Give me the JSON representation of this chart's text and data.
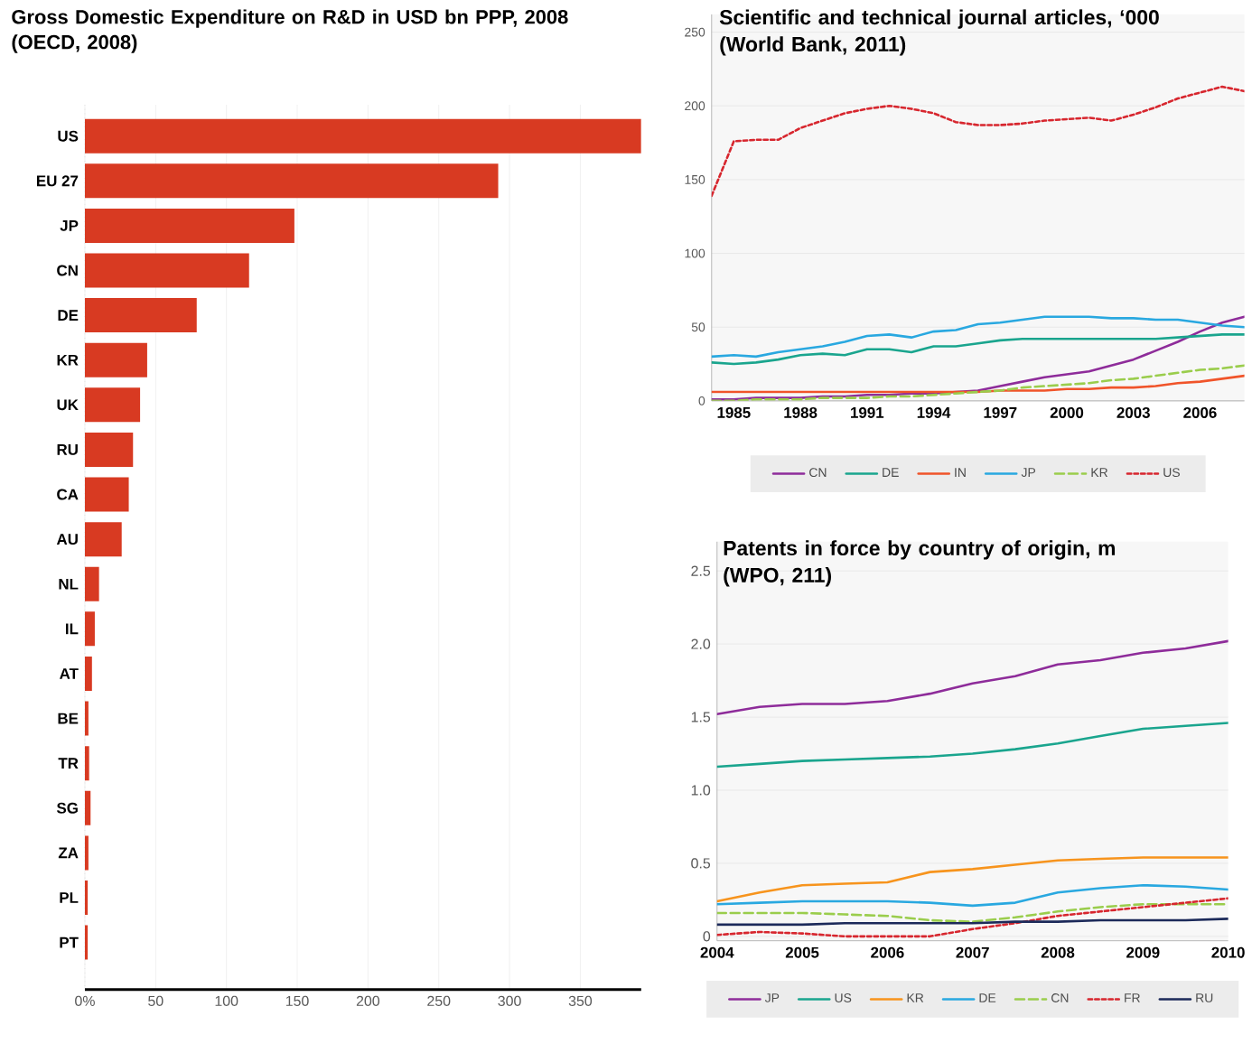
{
  "chart_data": [
    {
      "type": "bar",
      "orientation": "horizontal",
      "title": "Gross Domestic Expenditure on R&D in USD bn PPP, 2008",
      "subtitle": "(OECD, 2008)",
      "categories": [
        "US",
        "EU 27",
        "JP",
        "CN",
        "DE",
        "KR",
        "UK",
        "RU",
        "CA",
        "AU",
        "NL",
        "IL",
        "AT",
        "BE",
        "TR",
        "SG",
        "ZA",
        "PL",
        "PT"
      ],
      "values": [
        393,
        292,
        148,
        116,
        79,
        44,
        39,
        34,
        31,
        26,
        10,
        7,
        5,
        2.5,
        3,
        4,
        2.5,
        2,
        2
      ],
      "color": "#d83a22",
      "xlim": [
        0,
        393
      ],
      "xticks": [
        {
          "value": 0,
          "label": "0%"
        },
        50,
        100,
        150,
        200,
        250,
        300,
        350
      ],
      "grid": "x"
    },
    {
      "type": "line",
      "title": "Scientific and technical journal articles, ‘000",
      "subtitle": "(World Bank, 2011)",
      "x": [
        1984,
        1985,
        1986,
        1987,
        1988,
        1989,
        1990,
        1991,
        1992,
        1993,
        1994,
        1995,
        1996,
        1997,
        1998,
        1999,
        2000,
        2001,
        2002,
        2003,
        2004,
        2005,
        2006,
        2007,
        2008
      ],
      "series": [
        {
          "name": "CN",
          "color": "#8e2c9a",
          "values": [
            1,
            1,
            2,
            2,
            2,
            3,
            3,
            4,
            4,
            5,
            5,
            6,
            7,
            10,
            13,
            16,
            18,
            20,
            24,
            28,
            34,
            40,
            47,
            53,
            57
          ]
        },
        {
          "name": "DE",
          "color": "#1aa58e",
          "values": [
            26,
            25,
            26,
            28,
            31,
            32,
            31,
            35,
            35,
            33,
            37,
            37,
            39,
            41,
            42,
            42,
            42,
            42,
            42,
            42,
            42,
            43,
            44,
            45,
            45
          ]
        },
        {
          "name": "IN",
          "color": "#f0542a",
          "values": [
            6,
            6,
            6,
            6,
            6,
            6,
            6,
            6,
            6,
            6,
            6,
            6,
            6,
            7,
            7,
            7,
            8,
            8,
            9,
            9,
            10,
            12,
            13,
            15,
            17
          ]
        },
        {
          "name": "JP",
          "color": "#29a8e0",
          "values": [
            30,
            31,
            30,
            33,
            35,
            37,
            40,
            44,
            45,
            43,
            47,
            48,
            52,
            53,
            55,
            57,
            57,
            57,
            56,
            56,
            55,
            55,
            53,
            51,
            50
          ]
        },
        {
          "name": "KR",
          "color": "#9acd4c",
          "line_style": "dashed",
          "values": [
            0,
            0,
            1,
            1,
            1,
            2,
            2,
            2,
            3,
            3,
            4,
            5,
            6,
            7,
            9,
            10,
            11,
            12,
            14,
            15,
            17,
            19,
            21,
            22,
            24
          ]
        },
        {
          "name": "US",
          "color": "#d7262e",
          "line_style": "dotted",
          "values": [
            139,
            176,
            177,
            177,
            185,
            190,
            195,
            198,
            200,
            198,
            195,
            189,
            187,
            187,
            188,
            190,
            191,
            192,
            190,
            194,
            199,
            205,
            209,
            213,
            210
          ]
        }
      ],
      "xlim": [
        1984,
        2008
      ],
      "ylim": [
        0,
        262
      ],
      "xticks": [
        1985,
        1988,
        1991,
        1994,
        1997,
        2000,
        2003,
        2006
      ],
      "yticks": [
        0,
        50,
        100,
        150,
        200,
        250
      ],
      "grid": "y",
      "legend": "bottom",
      "marker": "none",
      "line_style": "solid"
    },
    {
      "type": "line",
      "title": "Patents in force by country of origin, m",
      "subtitle": "(WPO, 211)",
      "x": [
        2004,
        2004.5,
        2005,
        2005.5,
        2006,
        2006.5,
        2007,
        2007.5,
        2008,
        2008.5,
        2009,
        2009.5,
        2010
      ],
      "series": [
        {
          "name": "JP",
          "color": "#8e2c9a",
          "values": [
            1.52,
            1.57,
            1.59,
            1.59,
            1.61,
            1.66,
            1.73,
            1.78,
            1.86,
            1.89,
            1.94,
            1.97,
            2.02
          ]
        },
        {
          "name": "US",
          "color": "#1aa58e",
          "values": [
            1.16,
            1.18,
            1.2,
            1.21,
            1.22,
            1.23,
            1.25,
            1.28,
            1.32,
            1.37,
            1.42,
            1.44,
            1.46
          ]
        },
        {
          "name": "KR",
          "color": "#f7941d",
          "values": [
            0.24,
            0.3,
            0.35,
            0.36,
            0.37,
            0.44,
            0.46,
            0.49,
            0.52,
            0.53,
            0.54,
            0.54,
            0.54
          ]
        },
        {
          "name": "DE",
          "color": "#29a8e0",
          "values": [
            0.22,
            0.23,
            0.24,
            0.24,
            0.24,
            0.23,
            0.21,
            0.23,
            0.3,
            0.33,
            0.35,
            0.34,
            0.32
          ]
        },
        {
          "name": "CN",
          "color": "#9acd4c",
          "line_style": "dashed",
          "values": [
            0.16,
            0.16,
            0.16,
            0.15,
            0.14,
            0.11,
            0.1,
            0.13,
            0.17,
            0.2,
            0.22,
            0.22,
            0.22
          ]
        },
        {
          "name": "FR",
          "color": "#d7262e",
          "line_style": "dotted",
          "values": [
            0.01,
            0.03,
            0.02,
            0.0,
            0.0,
            0.0,
            0.05,
            0.09,
            0.14,
            0.17,
            0.2,
            0.23,
            0.26
          ]
        },
        {
          "name": "RU",
          "color": "#1c2a5a",
          "values": [
            0.08,
            0.08,
            0.08,
            0.09,
            0.09,
            0.09,
            0.09,
            0.1,
            0.1,
            0.11,
            0.11,
            0.11,
            0.12
          ]
        }
      ],
      "xlim": [
        2004,
        2010
      ],
      "ylim": [
        -0.03,
        2.7
      ],
      "xticks": [
        2004,
        2005,
        2006,
        2007,
        2008,
        2009,
        2010
      ],
      "yticks": [
        0,
        0.5,
        {
          "value": 1,
          "label": "1.0"
        },
        1.5,
        {
          "value": 2,
          "label": "2.0"
        },
        2.5
      ],
      "grid": "y",
      "legend": "bottom",
      "marker": "none",
      "line_style": "solid"
    }
  ]
}
